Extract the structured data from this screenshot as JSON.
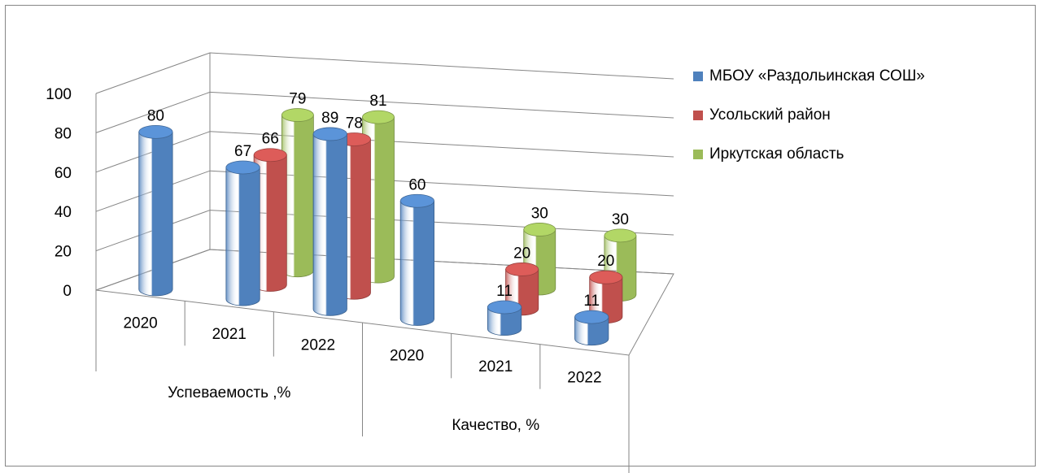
{
  "chart_data": {
    "type": "bar",
    "style": "3d-cylinder",
    "groups": [
      {
        "label": "Успеваемость ,%",
        "categories": [
          "2020",
          "2021",
          "2022"
        ]
      },
      {
        "label": "Качество, %",
        "categories": [
          "2020",
          "2021",
          "2022"
        ]
      }
    ],
    "categories": [
      "2020",
      "2021",
      "2022",
      "2020",
      "2021",
      "2022"
    ],
    "series": [
      {
        "name": "МБОУ «Раздольинская СОШ»",
        "color": "#4f81bd",
        "values": [
          80,
          67,
          89,
          60,
          11,
          11
        ]
      },
      {
        "name": "Усольский район",
        "color": "#c0504d",
        "values": [
          null,
          66,
          78,
          null,
          20,
          20
        ]
      },
      {
        "name": "Иркутская область",
        "color": "#9bbb59",
        "values": [
          null,
          79,
          81,
          null,
          30,
          30
        ]
      }
    ],
    "ylim": [
      0,
      100
    ],
    "yticks": [
      0,
      20,
      40,
      60,
      80,
      100
    ],
    "grid": true,
    "legend": "right"
  }
}
